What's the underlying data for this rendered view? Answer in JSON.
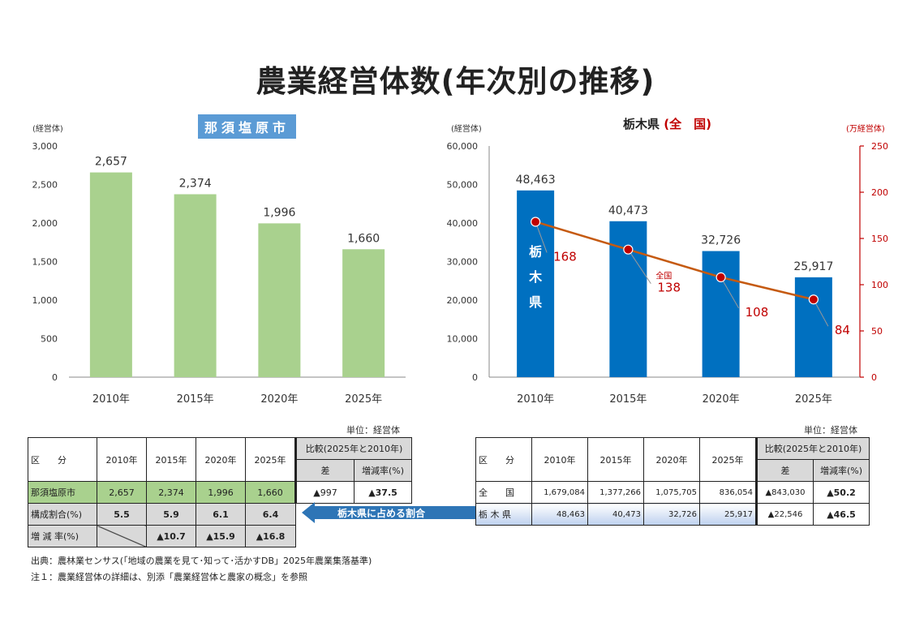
{
  "title": "農業経営体数(年次別の推移)",
  "left_chart": {
    "badge": "那須塩原市",
    "unit_label": "(経営体)",
    "categories": [
      "2010年",
      "2015年",
      "2020年",
      "2025年"
    ],
    "value_labels": [
      "2,657",
      "2,374",
      "1,996",
      "1,660"
    ],
    "yticks": [
      "0",
      "500",
      "1,000",
      "1,500",
      "2,000",
      "2,500",
      "3,000"
    ]
  },
  "right_chart": {
    "title_main": "栃木県",
    "title_sub": "(全　国)",
    "unit_left": "(経営体)",
    "unit_right": "(万経営体)",
    "categories": [
      "2010年",
      "2015年",
      "2020年",
      "2025年"
    ],
    "bar_value_labels": [
      "48,463",
      "40,473",
      "32,726",
      "25,917"
    ],
    "line_value_labels": [
      "168",
      "138",
      "108",
      "84"
    ],
    "bar_inner_label": [
      "栃",
      "木",
      "県"
    ],
    "line_callout": "全国",
    "yticks_left": [
      "0",
      "10,000",
      "20,000",
      "30,000",
      "40,000",
      "50,000",
      "60,000"
    ],
    "yticks_right": [
      "0",
      "50",
      "100",
      "150",
      "200",
      "250"
    ]
  },
  "chart_data": [
    {
      "type": "bar",
      "title": "那須塩原市",
      "ylabel": "(経営体)",
      "categories": [
        "2010年",
        "2015年",
        "2020年",
        "2025年"
      ],
      "values": [
        2657,
        2374,
        1996,
        1660
      ],
      "ylim": [
        0,
        3000
      ],
      "color": "#a9d18e"
    },
    {
      "type": "bar",
      "title": "栃木県(全国)",
      "ylabel": "(経営体)",
      "y2label": "(万経営体)",
      "categories": [
        "2010年",
        "2015年",
        "2020年",
        "2025年"
      ],
      "series": [
        {
          "name": "栃木県",
          "type": "bar",
          "axis": "left",
          "values": [
            48463,
            40473,
            32726,
            25917
          ],
          "color": "#0070c0"
        },
        {
          "name": "全国",
          "type": "line",
          "axis": "right",
          "values": [
            168,
            138,
            108,
            84
          ],
          "color": "#c55a11",
          "marker_color": "#c00000"
        }
      ],
      "ylim": [
        0,
        60000
      ],
      "y2lim": [
        0,
        250
      ]
    }
  ],
  "left_table": {
    "unit": "単位：経営体",
    "kubun": "区　　分",
    "years": [
      "2010年",
      "2015年",
      "2020年",
      "2025年"
    ],
    "compare_header": "比較(2025年と2010年)",
    "diff_header": "差",
    "rate_header": "増減率(%)",
    "rows": [
      {
        "label": "那須塩原市",
        "values": [
          "2,657",
          "2,374",
          "1,996",
          "1,660"
        ],
        "diff": "▲997",
        "rate": "▲37.5"
      },
      {
        "label": "構成割合(%)",
        "values": [
          "5.5",
          "5.9",
          "6.1",
          "6.4"
        ]
      },
      {
        "label": "増 減 率(%)",
        "values": [
          "",
          "▲10.7",
          "▲15.9",
          "▲16.8"
        ]
      }
    ]
  },
  "right_table": {
    "unit": "単位：経営体",
    "kubun": "区　　分",
    "years": [
      "2010年",
      "2015年",
      "2020年",
      "2025年"
    ],
    "compare_header": "比較(2025年と2010年)",
    "diff_header": "差",
    "rate_header": "増減率(%)",
    "rows": [
      {
        "label": "全　　国",
        "values": [
          "1,679,084",
          "1,377,266",
          "1,075,705",
          "836,054"
        ],
        "diff": "▲843,030",
        "rate": "▲50.2"
      },
      {
        "label": "栃 木 県",
        "values": [
          "48,463",
          "40,473",
          "32,726",
          "25,917"
        ],
        "diff": "▲22,546",
        "rate": "▲46.5"
      }
    ]
  },
  "arrow_label": "栃木県に占める割合",
  "notes": [
    "出典：農林業センサス(「地域の農業を見て･知って･活かすDB」2025年農業集落基準)",
    "注１：農業経営体の詳細は、別添「農業経営体と農家の概念」を参照"
  ]
}
